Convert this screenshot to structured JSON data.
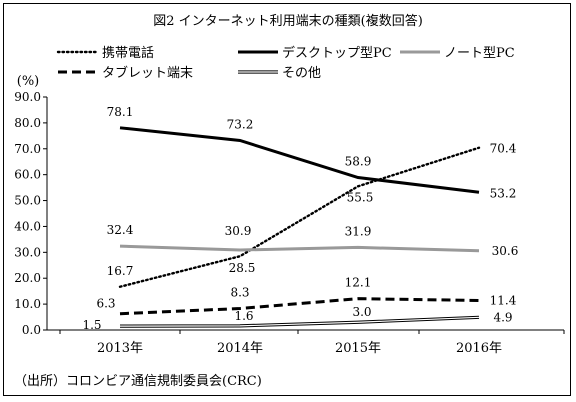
{
  "chart_data": {
    "type": "line",
    "title": "図2 インターネット利用端末の種類(複数回答)",
    "ylabel": "(%)",
    "categories": [
      "2013年",
      "2014年",
      "2015年",
      "2016年"
    ],
    "ylim": [
      0,
      90
    ],
    "yticks": [
      "0.0",
      "10.0",
      "20.0",
      "30.0",
      "40.0",
      "50.0",
      "60.0",
      "70.0",
      "80.0",
      "90.0"
    ],
    "grid": false,
    "legend_position": "top",
    "series": [
      {
        "name": "携帯電話",
        "values": [
          16.7,
          28.5,
          55.5,
          70.4
        ],
        "labels": [
          "16.7",
          "28.5",
          "55.5",
          "70.4"
        ],
        "style": "dotted",
        "color": "#000000"
      },
      {
        "name": "デスクトップ型PC",
        "values": [
          78.1,
          73.2,
          58.9,
          53.2
        ],
        "labels": [
          "78.1",
          "73.2",
          "58.9",
          "53.2"
        ],
        "style": "solid",
        "color": "#000000"
      },
      {
        "name": "ノート型PC",
        "values": [
          32.4,
          30.9,
          31.9,
          30.6
        ],
        "labels": [
          "32.4",
          "30.9",
          "31.9",
          "30.6"
        ],
        "style": "solid",
        "color": "#999999"
      },
      {
        "name": "タブレット端末",
        "values": [
          6.3,
          8.3,
          12.1,
          11.4
        ],
        "labels": [
          "6.3",
          "8.3",
          "12.1",
          "11.4"
        ],
        "style": "dashed",
        "color": "#000000"
      },
      {
        "name": "その他",
        "values": [
          1.5,
          1.6,
          3.0,
          4.9
        ],
        "labels": [
          "1.5",
          "1.6",
          "3.0",
          "4.9"
        ],
        "style": "double",
        "color": "#000000"
      }
    ],
    "source": "（出所）コロンビア通信規制委員会(CRC)"
  }
}
